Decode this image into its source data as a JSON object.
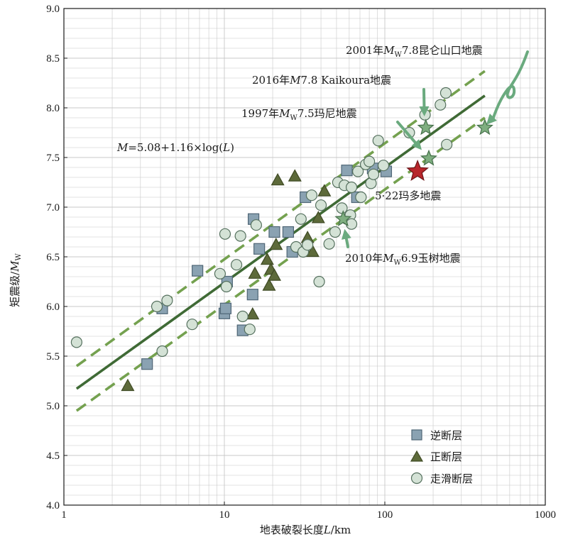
{
  "chart_data": {
    "type": "scatter",
    "xscale": "log",
    "xlim": [
      1,
      1000
    ],
    "ylim": [
      4.0,
      9.0
    ],
    "xlabel": "地表破裂长度L/km",
    "ylabel": "矩震级/Mw",
    "xticks": [
      "1",
      "10",
      "100",
      "1000"
    ],
    "yticks": [
      "4.0",
      "4.5",
      "5.0",
      "5.5",
      "6.0",
      "6.5",
      "7.0",
      "7.5",
      "8.0",
      "8.5",
      "9.0"
    ],
    "grid": true,
    "legend_position": "bottom-right",
    "colors": {
      "reverse_fill": "#8aa2b2",
      "reverse_stroke": "#4f6676",
      "normal_fill": "#5d6a3a",
      "normal_stroke": "#3f4a24",
      "strike_fill": "#d4e2d6",
      "strike_stroke": "#55705e",
      "fit_line": "#3f6a35",
      "bound_line": "#74a14f",
      "star_green": "#7fae80",
      "star_red": "#b8262b",
      "arrow": "#6aaa7e",
      "grid": "#c8c8c8"
    },
    "equation": "M=5.08+1.16×log(L)",
    "fit": {
      "a": 5.08,
      "b": 1.16,
      "x_range": [
        1.2,
        420
      ]
    },
    "bound_upper": {
      "x": [
        1.2,
        420
      ],
      "y": [
        5.4,
        8.37
      ]
    },
    "bound_lower": {
      "x": [
        1.2,
        420
      ],
      "y": [
        4.95,
        7.9
      ]
    },
    "series": [
      {
        "name": "逆断层",
        "marker": "square",
        "points": [
          [
            3.3,
            5.42
          ],
          [
            4.1,
            5.98
          ],
          [
            6.8,
            6.36
          ],
          [
            10,
            5.93
          ],
          [
            10.2,
            5.98
          ],
          [
            10.4,
            6.25
          ],
          [
            13,
            5.76
          ],
          [
            15,
            6.12
          ],
          [
            15.2,
            6.88
          ],
          [
            16.5,
            6.58
          ],
          [
            20.5,
            6.75
          ],
          [
            25,
            6.75
          ],
          [
            26.5,
            6.55
          ],
          [
            32,
            7.1
          ],
          [
            58,
            7.37
          ],
          [
            67,
            7.1
          ],
          [
            84,
            7.39
          ],
          [
            102,
            7.36
          ]
        ]
      },
      {
        "name": "正断层",
        "marker": "triangle",
        "points": [
          [
            2.5,
            5.2
          ],
          [
            15,
            5.92
          ],
          [
            15.5,
            6.33
          ],
          [
            18.5,
            6.47
          ],
          [
            19,
            6.21
          ],
          [
            19.5,
            6.37
          ],
          [
            20.5,
            6.31
          ],
          [
            21,
            6.62
          ],
          [
            21.5,
            7.27
          ],
          [
            27.5,
            7.31
          ],
          [
            33,
            6.69
          ],
          [
            35.5,
            6.55
          ],
          [
            38.5,
            6.89
          ],
          [
            42,
            7.16
          ]
        ]
      },
      {
        "name": "走滑断层",
        "marker": "circle",
        "points": [
          [
            1.2,
            5.64
          ],
          [
            3.8,
            6.0
          ],
          [
            4.1,
            5.55
          ],
          [
            4.4,
            6.06
          ],
          [
            6.3,
            5.82
          ],
          [
            9.4,
            6.33
          ],
          [
            10.1,
            6.73
          ],
          [
            10.3,
            6.2
          ],
          [
            11.9,
            6.42
          ],
          [
            12.6,
            6.71
          ],
          [
            13,
            5.9
          ],
          [
            14.4,
            5.77
          ],
          [
            15.8,
            6.82
          ],
          [
            28,
            6.6
          ],
          [
            30,
            6.88
          ],
          [
            31,
            6.55
          ],
          [
            33,
            6.62
          ],
          [
            35,
            7.12
          ],
          [
            39,
            6.25
          ],
          [
            40,
            7.02
          ],
          [
            45,
            6.63
          ],
          [
            49,
            6.75
          ],
          [
            51,
            7.25
          ],
          [
            54,
            6.99
          ],
          [
            56,
            7.22
          ],
          [
            58,
            6.88
          ],
          [
            61,
            6.92
          ],
          [
            62,
            6.83
          ],
          [
            62,
            7.2
          ],
          [
            68,
            7.36
          ],
          [
            71,
            7.1
          ],
          [
            76,
            7.43
          ],
          [
            80,
            7.46
          ],
          [
            82,
            7.24
          ],
          [
            85,
            7.33
          ],
          [
            91,
            7.67
          ],
          [
            98,
            7.42
          ],
          [
            142,
            7.75
          ],
          [
            178,
            7.93
          ],
          [
            222,
            8.03
          ],
          [
            240,
            8.15
          ],
          [
            243,
            7.63
          ]
        ]
      }
    ],
    "stars": [
      {
        "label": "5·22玛多地震",
        "x": 160,
        "y": 7.36,
        "color": "red"
      },
      {
        "label": "2016年M7.8 Kaikoura地震",
        "x": 180,
        "y": 7.8,
        "color": "green"
      },
      {
        "label": "1997年Mw7.5玛尼地震",
        "x": 188,
        "y": 7.49,
        "color": "green"
      },
      {
        "label": "2010年Mw6.9玉树地震",
        "x": 55,
        "y": 6.88,
        "color": "green"
      },
      {
        "label": "2001年Mw7.8昆仑山口地震",
        "x": 420,
        "y": 7.8,
        "color": "green"
      }
    ]
  },
  "annotations": {
    "kunlun": {
      "year": "2001年",
      "m": "M",
      "sub": "W",
      "rest": "7.8昆仑山口地震"
    },
    "kaikoura": {
      "year": "2016年",
      "m": "M",
      "rest": "7.8 Kaikoura地震"
    },
    "mani": {
      "year": "1997年",
      "m": "M",
      "sub": "W",
      "rest": "7.5玛尼地震"
    },
    "equation": {
      "m": "M",
      "mid": "=5.08+1.16×log(",
      "l": "L",
      "close": ")"
    },
    "maduo": "5·22玛多地震",
    "yushu": {
      "year": "2010年",
      "m": "M",
      "sub": "W",
      "rest": "6.9玉树地震"
    }
  },
  "axis": {
    "ylabel": {
      "text": "矩震级/",
      "m": "M",
      "sub": "W"
    },
    "xlabel": {
      "text": "地表破裂长度",
      "l": "L",
      "unit": "/km"
    }
  },
  "legend": [
    {
      "label": "逆断层",
      "marker": "square"
    },
    {
      "label": "正断层",
      "marker": "triangle"
    },
    {
      "label": "走滑断层",
      "marker": "circle"
    }
  ]
}
